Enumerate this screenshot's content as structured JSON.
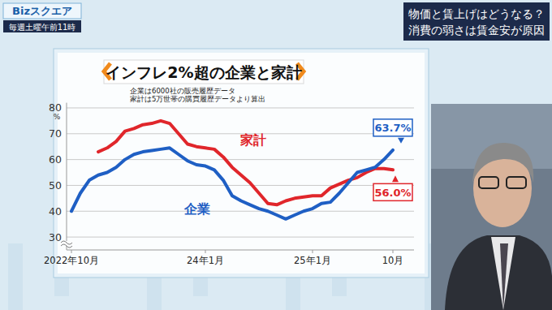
{
  "page": {
    "logo": "Bizスクエア",
    "schedule": "毎週土曜午前11時",
    "headline": [
      "物価と賃上げはどうなる？",
      "消費の弱さは賃金安が原因"
    ]
  },
  "chart_data": {
    "type": "line",
    "title": "インフレ2%超の企業と家計",
    "notes": [
      "企業は6000社の販売履歴データ",
      "家計は5万世帯の購買履歴データより算出"
    ],
    "y_label": "%",
    "categories": [
      "2022年10月",
      null,
      null,
      null,
      null,
      null,
      null,
      null,
      null,
      null,
      null,
      null,
      null,
      null,
      null,
      "24年1月",
      null,
      null,
      null,
      null,
      null,
      null,
      null,
      null,
      null,
      null,
      null,
      "25年1月",
      null,
      null,
      null,
      null,
      null,
      null,
      null,
      null,
      "10月"
    ],
    "series": [
      {
        "name": "企業",
        "color": "#1f5fc4",
        "end_label": "63.7%",
        "values": [
          40,
          47,
          52,
          54,
          55,
          57,
          60,
          62,
          63,
          63.5,
          64,
          64.5,
          62,
          59.5,
          58,
          57.5,
          56,
          52,
          46,
          44,
          42.5,
          41,
          40,
          38.5,
          37,
          38.5,
          40,
          41,
          43,
          43.5,
          47,
          51,
          55,
          56,
          57,
          60,
          63.7
        ]
      },
      {
        "name": "家計",
        "color": "#e0262b",
        "end_label": "56.0%",
        "values": [
          null,
          null,
          null,
          63,
          64.5,
          67,
          71,
          72,
          73.5,
          74,
          75,
          74,
          70,
          66,
          65,
          64.5,
          64,
          61,
          57,
          54,
          51,
          47,
          43,
          42.5,
          44,
          45,
          45.5,
          46,
          46,
          49,
          50.5,
          52,
          53,
          55,
          56.5,
          56.5,
          56.0
        ]
      }
    ],
    "ylim": [
      25,
      82
    ],
    "yticks": [
      30,
      40,
      50,
      60,
      70,
      80
    ],
    "grid": true
  }
}
